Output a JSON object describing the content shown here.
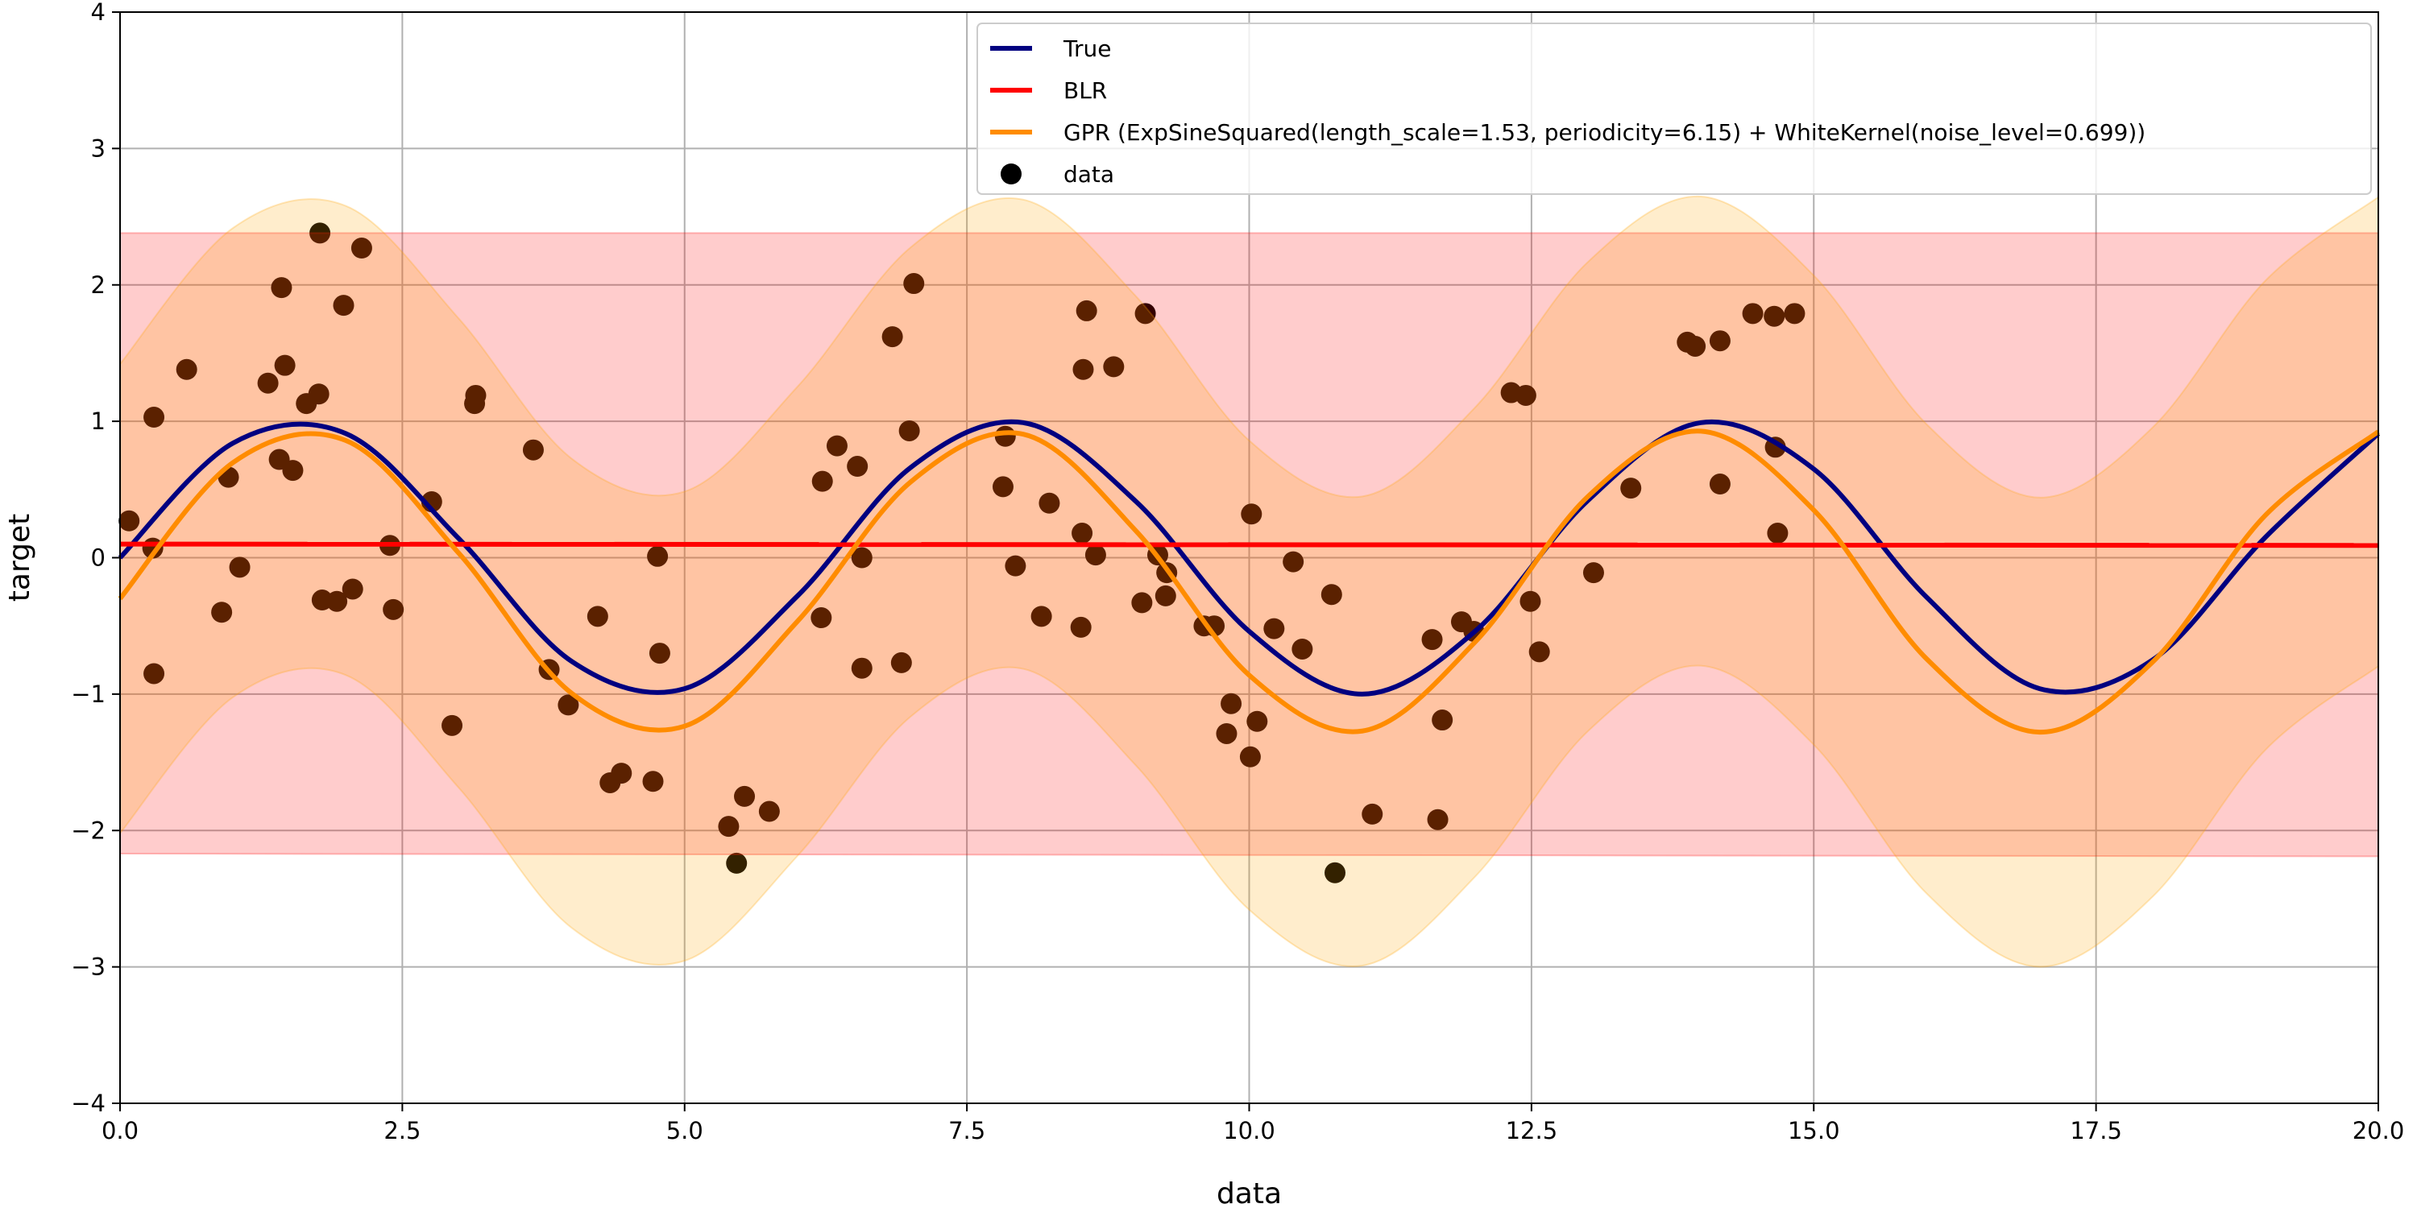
{
  "chart_data": {
    "type": "line",
    "title": "",
    "xlabel": "data",
    "ylabel": "target",
    "xlim": [
      0,
      20
    ],
    "ylim": [
      -4,
      4
    ],
    "grid": true,
    "legend_position": "top-right",
    "xticks": [
      "0.0",
      "2.5",
      "5.0",
      "7.5",
      "10.0",
      "12.5",
      "15.0",
      "17.5",
      "20.0"
    ],
    "xtick_values": [
      0,
      2.5,
      5,
      7.5,
      10,
      12.5,
      15,
      17.5,
      20
    ],
    "yticks": [
      "−4",
      "−3",
      "−2",
      "−1",
      "0",
      "1",
      "2",
      "3",
      "4"
    ],
    "ytick_values": [
      -4,
      -3,
      -2,
      -1,
      0,
      1,
      2,
      3,
      4
    ],
    "curve_x": [
      0,
      1,
      2,
      3,
      4,
      5,
      6,
      7,
      8,
      9,
      10,
      11,
      12,
      13,
      14,
      15,
      16,
      17,
      18,
      19,
      20
    ],
    "series": [
      {
        "name": "True",
        "color": "#000080",
        "values": [
          0,
          0.84,
          0.91,
          0.14,
          -0.76,
          -0.96,
          -0.28,
          0.66,
          0.99,
          0.41,
          -0.54,
          -1.0,
          -0.54,
          0.42,
          0.99,
          0.65,
          -0.29,
          -0.96,
          -0.75,
          0.15,
          0.91
        ]
      },
      {
        "name": "BLR",
        "color": "#ff0000",
        "x": [
          0,
          20
        ],
        "values": [
          0.1,
          0.09
        ],
        "band_upper": [
          2.38,
          2.38
        ],
        "band_lower": [
          -2.17,
          -2.19
        ],
        "band_color": "#ff0000"
      },
      {
        "name": "GPR (ExpSineSquared(length_scale=1.53, periodicity=6.15) + WhiteKernel(noise_level=0.699))",
        "color": "#ff8c00",
        "values": [
          -0.3,
          0.697,
          0.859,
          0.033,
          -0.994,
          -1.235,
          -0.466,
          0.554,
          0.905,
          0.194,
          -0.861,
          -1.271,
          -0.619,
          0.448,
          0.928,
          0.349,
          -0.742,
          -1.279,
          -0.766,
          0.311,
          0.924
        ],
        "band_halfwidth": 1.72,
        "band_color": "#ffa500"
      }
    ],
    "scatter": {
      "name": "data",
      "color": "#000000",
      "points": [
        [
          0.08,
          0.27
        ],
        [
          0.3,
          1.03
        ],
        [
          0.29,
          0.07
        ],
        [
          0.3,
          -0.85
        ],
        [
          0.59,
          1.38
        ],
        [
          0.9,
          -0.4
        ],
        [
          0.96,
          0.59
        ],
        [
          1.06,
          -0.07
        ],
        [
          1.31,
          1.28
        ],
        [
          1.41,
          0.72
        ],
        [
          1.43,
          1.98
        ],
        [
          1.46,
          1.41
        ],
        [
          1.53,
          0.64
        ],
        [
          1.65,
          1.13
        ],
        [
          1.76,
          1.2
        ],
        [
          1.77,
          2.38
        ],
        [
          1.79,
          -0.31
        ],
        [
          1.92,
          -0.32
        ],
        [
          1.98,
          1.85
        ],
        [
          2.06,
          -0.23
        ],
        [
          2.14,
          2.27
        ],
        [
          2.39,
          0.09
        ],
        [
          2.42,
          -0.38
        ],
        [
          2.76,
          0.41
        ],
        [
          2.94,
          -1.23
        ],
        [
          3.14,
          1.13
        ],
        [
          3.15,
          1.19
        ],
        [
          3.66,
          0.79
        ],
        [
          3.8,
          -0.82
        ],
        [
          3.97,
          -1.08
        ],
        [
          4.23,
          -0.43
        ],
        [
          4.34,
          -1.65
        ],
        [
          4.44,
          -1.58
        ],
        [
          4.72,
          -1.64
        ],
        [
          4.76,
          0.01
        ],
        [
          4.78,
          -0.7
        ],
        [
          5.39,
          -1.97
        ],
        [
          5.46,
          -2.24
        ],
        [
          5.53,
          -1.75
        ],
        [
          5.75,
          -1.86
        ],
        [
          6.21,
          -0.44
        ],
        [
          6.22,
          0.56
        ],
        [
          6.35,
          0.82
        ],
        [
          6.53,
          0.67
        ],
        [
          6.57,
          0.0
        ],
        [
          6.57,
          -0.81
        ],
        [
          6.84,
          1.62
        ],
        [
          6.92,
          -0.77
        ],
        [
          6.99,
          0.93
        ],
        [
          7.03,
          2.01
        ],
        [
          7.82,
          0.52
        ],
        [
          7.84,
          0.89
        ],
        [
          7.93,
          -0.06
        ],
        [
          8.16,
          -0.43
        ],
        [
          8.23,
          0.4
        ],
        [
          8.51,
          -0.51
        ],
        [
          8.52,
          0.18
        ],
        [
          8.53,
          1.38
        ],
        [
          8.56,
          1.81
        ],
        [
          8.64,
          0.02
        ],
        [
          8.8,
          1.4
        ],
        [
          9.05,
          -0.33
        ],
        [
          9.08,
          1.79
        ],
        [
          9.19,
          0.02
        ],
        [
          9.26,
          -0.28
        ],
        [
          9.27,
          -0.11
        ],
        [
          9.6,
          -0.5
        ],
        [
          9.69,
          -0.5
        ],
        [
          9.8,
          -1.29
        ],
        [
          9.84,
          -1.07
        ],
        [
          10.01,
          -1.46
        ],
        [
          10.02,
          0.32
        ],
        [
          10.07,
          -1.2
        ],
        [
          10.22,
          -0.52
        ],
        [
          10.39,
          -0.03
        ],
        [
          10.47,
          -0.67
        ],
        [
          10.73,
          -0.27
        ],
        [
          10.76,
          -2.31
        ],
        [
          11.09,
          -1.88
        ],
        [
          11.62,
          -0.6
        ],
        [
          11.67,
          -1.92
        ],
        [
          11.71,
          -1.19
        ],
        [
          11.88,
          -0.47
        ],
        [
          11.99,
          -0.54
        ],
        [
          12.32,
          1.21
        ],
        [
          12.45,
          1.19
        ],
        [
          12.49,
          -0.32
        ],
        [
          12.57,
          -0.69
        ],
        [
          13.05,
          -0.11
        ],
        [
          13.38,
          0.51
        ],
        [
          13.88,
          1.58
        ],
        [
          13.95,
          1.55
        ],
        [
          14.17,
          1.59
        ],
        [
          14.17,
          0.54
        ],
        [
          14.46,
          1.79
        ],
        [
          14.65,
          1.77
        ],
        [
          14.66,
          0.81
        ],
        [
          14.68,
          0.18
        ],
        [
          14.83,
          1.79
        ]
      ]
    },
    "legend": [
      "True",
      "BLR",
      "GPR (ExpSineSquared(length_scale=1.53, periodicity=6.15) + WhiteKernel(noise_level=0.699))",
      "data"
    ]
  }
}
